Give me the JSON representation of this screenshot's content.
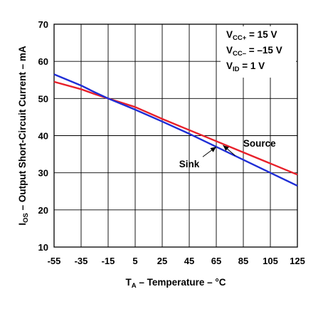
{
  "chart_data": {
    "type": "line",
    "xlabel": {
      "main": "T",
      "sub": "A",
      "rest": " – Temperature – °C"
    },
    "ylabel": {
      "main": "I",
      "sub": "OS",
      "rest": " – Output Short-Circuit Current – mA"
    },
    "xlim": [
      -55,
      125
    ],
    "ylim": [
      10,
      70
    ],
    "x_ticks": [
      -55,
      -35,
      -15,
      5,
      25,
      45,
      65,
      85,
      105,
      125
    ],
    "y_ticks": [
      10,
      20,
      30,
      40,
      50,
      60,
      70
    ],
    "grid": true,
    "conditions": [
      {
        "main": "V",
        "sub": "CC+",
        "rest": " = 15 V"
      },
      {
        "main": "V",
        "sub": "CC–",
        "rest": " = –15 V"
      },
      {
        "main": "V",
        "sub": "ID",
        "rest": " = 1 V"
      }
    ],
    "series": [
      {
        "name": "Source",
        "color": "#e8202a",
        "x": [
          -55,
          -35,
          -25,
          -15,
          5,
          25,
          45,
          65,
          85,
          105,
          125
        ],
        "y": [
          54.5,
          52.5,
          51.2,
          50.0,
          47.7,
          44.5,
          41.5,
          38.5,
          35.5,
          32.5,
          29.5
        ]
      },
      {
        "name": "Sink",
        "color": "#1f2ed6",
        "x": [
          -55,
          -35,
          -25,
          -15,
          5,
          25,
          45,
          65,
          85,
          105,
          125
        ],
        "y": [
          56.5,
          53.5,
          51.7,
          50.0,
          47.0,
          43.8,
          40.5,
          37.0,
          33.5,
          30.0,
          26.5
        ]
      }
    ],
    "annotations": [
      {
        "text": "Source",
        "series": "Source",
        "text_at": [
          97,
          37.0
        ],
        "arrow_from": [
          79,
          34.6
        ],
        "arrow_to": [
          70,
          37.4
        ]
      },
      {
        "text": "Sink",
        "series": "Sink",
        "text_at": [
          45,
          31.5
        ],
        "arrow_from": [
          55,
          34.3
        ],
        "arrow_to": [
          65,
          37.0
        ]
      }
    ]
  }
}
